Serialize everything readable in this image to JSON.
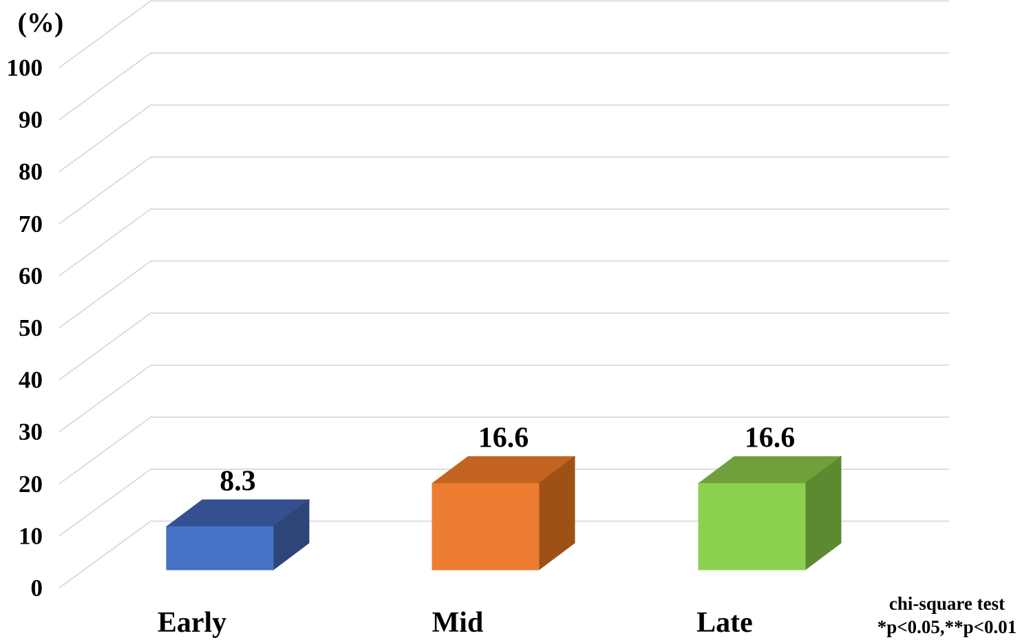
{
  "chart_data": {
    "type": "bar",
    "projection": "3d-column",
    "title": "",
    "xlabel": "",
    "ylabel": "(%)",
    "categories": [
      "Early",
      "Mid",
      "Late"
    ],
    "values": [
      8.3,
      16.6,
      16.6
    ],
    "data_labels": [
      "8.3",
      "16.6",
      "16.6"
    ],
    "ytick_labels": [
      "0",
      "10",
      "20",
      "30",
      "40",
      "50",
      "60",
      "70",
      "80",
      "90",
      "100"
    ],
    "ylim": [
      0,
      110
    ],
    "ytick_step": 10,
    "grid": true,
    "legend": "none",
    "annotation": {
      "line1": "chi-square test",
      "line2": "*p<0.05,**p<0.01"
    },
    "colors": {
      "bars": [
        {
          "name": "blue",
          "front": "#4472C4",
          "top": "#355090",
          "side": "#2D4579"
        },
        {
          "name": "orange",
          "front": "#ED7D31",
          "top": "#C2631F",
          "side": "#9E5117"
        },
        {
          "name": "green",
          "front": "#8CD04F",
          "top": "#6FA03C",
          "side": "#5C8A30"
        }
      ],
      "gridline": "#D9D9D9",
      "text": "#000000",
      "background": "#FFFFFF"
    }
  }
}
